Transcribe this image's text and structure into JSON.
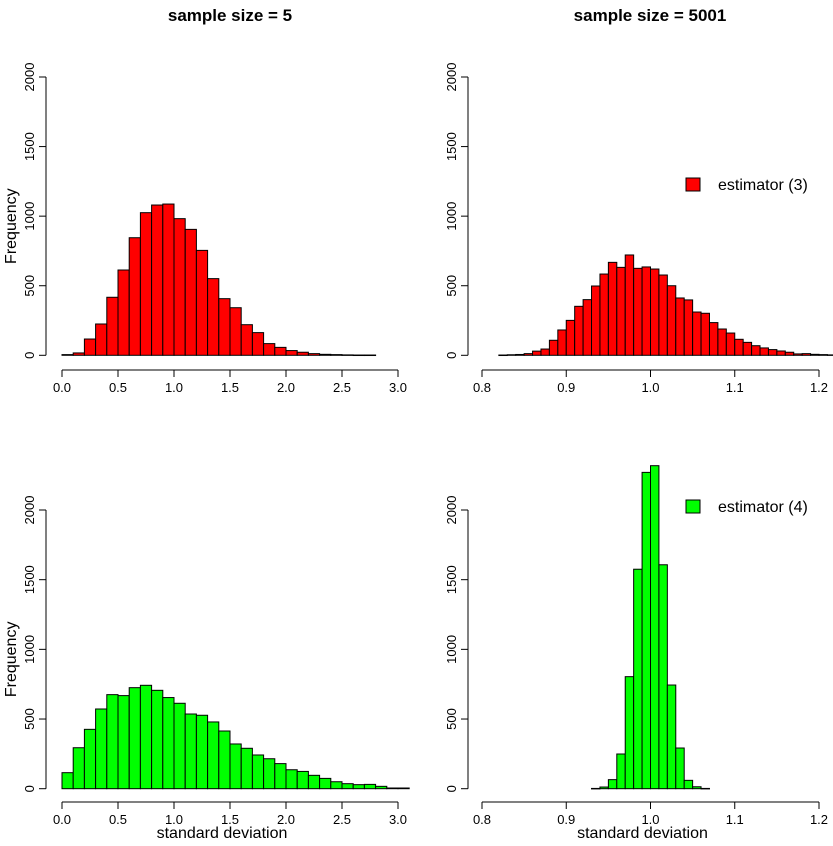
{
  "chart_data": [
    {
      "type": "bar",
      "title": "sample size = 5",
      "ylabel": "Frequency",
      "xlabel": "",
      "xlim": [
        0.0,
        3.0
      ],
      "ylim": [
        0,
        2000
      ],
      "xticks": [
        "0.0",
        "0.5",
        "1.0",
        "1.5",
        "2.0",
        "2.5",
        "3.0"
      ],
      "yticks": [
        "0",
        "500",
        "1000",
        "1500",
        "2000"
      ],
      "bin_start": 0.0,
      "bin_width": 0.1,
      "values": [
        5,
        17,
        117,
        225,
        417,
        613,
        845,
        1025,
        1080,
        1087,
        982,
        905,
        754,
        551,
        407,
        342,
        220,
        163,
        84,
        57,
        34,
        22,
        12,
        7,
        5,
        3,
        2,
        2
      ],
      "color": "#ff0000"
    },
    {
      "type": "bar",
      "title": "sample size = 5001",
      "ylabel": "",
      "xlabel": "",
      "xlim": [
        0.8,
        1.2
      ],
      "ylim": [
        0,
        2000
      ],
      "xticks": [
        "0.8",
        "0.9",
        "1.0",
        "1.1",
        "1.2"
      ],
      "yticks": [
        "0",
        "500",
        "1000",
        "1500",
        "2000"
      ],
      "bin_start": 0.82,
      "bin_width": 0.01,
      "values": [
        2,
        4,
        6,
        12,
        30,
        45,
        108,
        182,
        251,
        352,
        400,
        498,
        584,
        668,
        632,
        721,
        625,
        635,
        620,
        577,
        500,
        412,
        398,
        311,
        302,
        235,
        189,
        160,
        115,
        93,
        69,
        53,
        41,
        31,
        22,
        10,
        12,
        7,
        5,
        3
      ],
      "color": "#ff0000",
      "legend": {
        "label": "estimator (3)",
        "placement": "right"
      }
    },
    {
      "type": "bar",
      "title": "",
      "ylabel": "Frequency",
      "xlabel": "standard deviation",
      "xlim": [
        0.0,
        3.0
      ],
      "ylim": [
        0,
        2000
      ],
      "xticks": [
        "0.0",
        "0.5",
        "1.0",
        "1.5",
        "2.0",
        "2.5",
        "3.0"
      ],
      "yticks": [
        "0",
        "500",
        "1000",
        "1500",
        "2000"
      ],
      "bin_start": 0.0,
      "bin_width": 0.1,
      "values": [
        115,
        294,
        426,
        572,
        675,
        668,
        725,
        742,
        706,
        654,
        613,
        536,
        527,
        479,
        414,
        321,
        290,
        242,
        215,
        180,
        136,
        124,
        96,
        74,
        50,
        36,
        29,
        31,
        17,
        5,
        5
      ],
      "color": "#00ff00"
    },
    {
      "type": "bar",
      "title": "",
      "ylabel": "",
      "xlabel": "standard deviation",
      "xlim": [
        0.8,
        1.2
      ],
      "ylim": [
        0,
        2000
      ],
      "xticks": [
        "0.8",
        "0.9",
        "1.0",
        "1.1",
        "1.2"
      ],
      "yticks": [
        "0",
        "500",
        "1000",
        "1500",
        "2000"
      ],
      "bin_start": 0.93,
      "bin_width": 0.01,
      "values": [
        2,
        12,
        65,
        249,
        804,
        1575,
        2270,
        2318,
        1607,
        744,
        292,
        60,
        14,
        2
      ],
      "color": "#00ff00",
      "legend": {
        "label": "estimator (4)",
        "placement": "top-right"
      }
    }
  ]
}
